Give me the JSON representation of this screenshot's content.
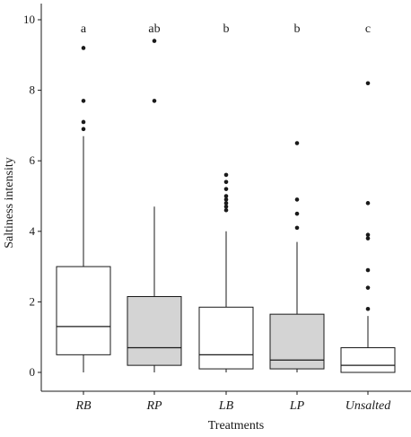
{
  "chart_data": {
    "type": "box",
    "xlabel": "Treatments",
    "ylabel": "Saltiness intensity",
    "ylim": [
      0,
      10.3
    ],
    "yticks": [
      0,
      2,
      4,
      6,
      8,
      10
    ],
    "grid": false,
    "categories": [
      "RB",
      "RP",
      "LB",
      "LP",
      "Unsalted"
    ],
    "box_fill": [
      "white",
      "gray",
      "white",
      "gray",
      "white"
    ],
    "colors": {
      "white": "#ffffff",
      "gray": "#d4d4d4",
      "stroke": "#1a1a1a"
    },
    "significance_letters": [
      "a",
      "ab",
      "b",
      "b",
      "c"
    ],
    "boxes": [
      {
        "name": "RB",
        "whisker_low": 0.0,
        "q1": 0.5,
        "median": 1.3,
        "q3": 3.0,
        "whisker_high": 6.7,
        "outliers": [
          6.9,
          7.1,
          7.7,
          9.2
        ]
      },
      {
        "name": "RP",
        "whisker_low": 0.0,
        "q1": 0.2,
        "median": 0.7,
        "q3": 2.15,
        "whisker_high": 4.7,
        "outliers": [
          7.7,
          9.4
        ]
      },
      {
        "name": "LB",
        "whisker_low": 0.0,
        "q1": 0.1,
        "median": 0.5,
        "q3": 1.85,
        "whisker_high": 4.0,
        "outliers": [
          4.6,
          4.7,
          4.8,
          4.9,
          5.0,
          5.2,
          5.4,
          5.6
        ]
      },
      {
        "name": "LP",
        "whisker_low": 0.0,
        "q1": 0.1,
        "median": 0.35,
        "q3": 1.65,
        "whisker_high": 3.7,
        "outliers": [
          4.1,
          4.5,
          4.9,
          6.5
        ]
      },
      {
        "name": "Unsalted",
        "whisker_low": 0.0,
        "q1": 0.0,
        "median": 0.2,
        "q3": 0.7,
        "whisker_high": 1.6,
        "outliers": [
          1.8,
          2.4,
          2.9,
          3.8,
          3.9,
          4.8,
          8.2
        ]
      }
    ]
  }
}
